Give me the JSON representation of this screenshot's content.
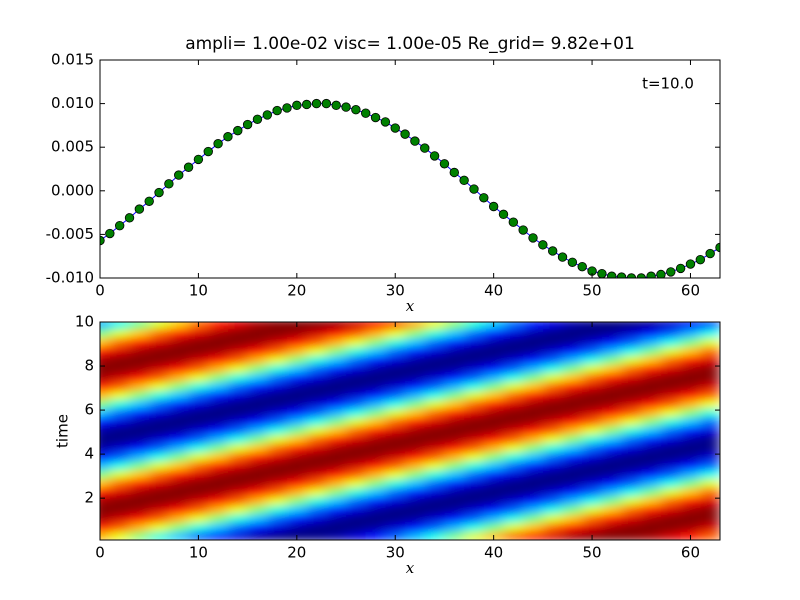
{
  "chart_data": [
    {
      "type": "line",
      "title": "ampli= 1.00e-02  visc= 1.00e-05  Re_grid= 9.82e+01",
      "annotation": "t=10.0",
      "xlabel": "x",
      "x": [
        0,
        1,
        2,
        3,
        4,
        5,
        6,
        7,
        8,
        9,
        10,
        11,
        12,
        13,
        14,
        15,
        16,
        17,
        18,
        19,
        20,
        21,
        22,
        23,
        24,
        25,
        26,
        27,
        28,
        29,
        30,
        31,
        32,
        33,
        34,
        35,
        36,
        37,
        38,
        39,
        40,
        41,
        42,
        43,
        44,
        45,
        46,
        47,
        48,
        49,
        50,
        51,
        52,
        53,
        54,
        55,
        56,
        57,
        58,
        59,
        60,
        61,
        62,
        63
      ],
      "series": [
        {
          "color": "#0000ff",
          "marker_color": "#008000",
          "values": [
            -0.0057,
            -0.0049,
            -0.004,
            -0.0031,
            -0.0021,
            -0.0012,
            -0.0002,
            0.0008,
            0.0018,
            0.0027,
            0.0036,
            0.0045,
            0.0054,
            0.0062,
            0.0069,
            0.0076,
            0.0082,
            0.0087,
            0.0092,
            0.0095,
            0.0098,
            0.0099,
            0.01,
            0.01,
            0.0098,
            0.0096,
            0.0093,
            0.0089,
            0.0084,
            0.0079,
            0.0072,
            0.0065,
            0.0057,
            0.0049,
            0.004,
            0.0031,
            0.0021,
            0.0012,
            0.0002,
            -0.0008,
            -0.0018,
            -0.0027,
            -0.0036,
            -0.0045,
            -0.0054,
            -0.0062,
            -0.0069,
            -0.0076,
            -0.0082,
            -0.0087,
            -0.0092,
            -0.0095,
            -0.0098,
            -0.0099,
            -0.01,
            -0.01,
            -0.0098,
            -0.0096,
            -0.0093,
            -0.0089,
            -0.0084,
            -0.0079,
            -0.0072,
            -0.0065
          ]
        }
      ],
      "xlim": [
        0,
        63
      ],
      "xticks": [
        0,
        10,
        20,
        30,
        40,
        50,
        60
      ],
      "ylim": [
        -0.01,
        0.015
      ],
      "yticks": [
        {
          "value": -0.01,
          "label": "-0.010"
        },
        -0.005,
        {
          "value": 0,
          "label": "0.000"
        },
        0.005,
        {
          "value": 0.01,
          "label": "0.010"
        },
        0.015
      ]
    },
    {
      "type": "heatmap",
      "xlabel": "x",
      "ylabel": "time",
      "colormap": "jet",
      "clim": [
        -0.01,
        0.01
      ],
      "x": [
        0,
        2,
        4,
        6,
        8,
        10,
        12,
        14,
        16,
        18,
        20,
        22,
        24,
        26,
        28,
        30,
        32,
        34,
        36,
        38,
        40,
        42,
        44,
        46,
        48,
        50,
        52,
        54,
        56,
        58,
        60,
        62
      ],
      "y": [
        0.3,
        0.7,
        1.1,
        1.5,
        1.9,
        2.3,
        2.7,
        3.1,
        3.5,
        3.9,
        4.3,
        4.7,
        5.1,
        5.5,
        5.9,
        6.3,
        6.7,
        7.1,
        7.5,
        7.9,
        8.3,
        8.7,
        9.1,
        9.5,
        9.9
      ],
      "z": [
        [
          0.004,
          0.0021,
          0.0002,
          -0.0018,
          -0.0036,
          -0.0054,
          -0.0069,
          -0.0082,
          -0.0092,
          -0.0098,
          -0.01,
          -0.0098,
          -0.0093,
          -0.0084,
          -0.0072,
          -0.0057,
          -0.004,
          -0.0021,
          -0.0002,
          0.0018,
          0.0036,
          0.0054,
          0.0069,
          0.0082,
          0.0092,
          0.0098,
          0.01,
          0.0098,
          0.0093,
          0.0084,
          0.0072,
          0.0057
        ],
        [
          0.0072,
          0.0057,
          0.004,
          0.0021,
          0.0002,
          -0.0018,
          -0.0036,
          -0.0054,
          -0.0069,
          -0.0082,
          -0.0092,
          -0.0098,
          -0.01,
          -0.0098,
          -0.0093,
          -0.0084,
          -0.0072,
          -0.0057,
          -0.004,
          -0.0021,
          -0.0002,
          0.0018,
          0.0036,
          0.0054,
          0.0069,
          0.0082,
          0.0092,
          0.0098,
          0.01,
          0.0098,
          0.0093,
          0.0084
        ],
        [
          0.0093,
          0.0084,
          0.0072,
          0.0057,
          0.004,
          0.0021,
          0.0002,
          -0.0018,
          -0.0036,
          -0.0054,
          -0.0069,
          -0.0082,
          -0.0092,
          -0.0098,
          -0.01,
          -0.0098,
          -0.0093,
          -0.0084,
          -0.0072,
          -0.0057,
          -0.004,
          -0.0021,
          -0.0002,
          0.0018,
          0.0036,
          0.0054,
          0.0069,
          0.0082,
          0.0092,
          0.0098,
          0.01,
          0.0098
        ],
        [
          0.01,
          0.0098,
          0.0093,
          0.0084,
          0.0072,
          0.0057,
          0.004,
          0.0021,
          0.0002,
          -0.0018,
          -0.0036,
          -0.0054,
          -0.0069,
          -0.0082,
          -0.0092,
          -0.0098,
          -0.01,
          -0.0098,
          -0.0093,
          -0.0084,
          -0.0072,
          -0.0057,
          -0.004,
          -0.0021,
          -0.0002,
          0.0018,
          0.0036,
          0.0054,
          0.0069,
          0.0082,
          0.0092,
          0.0098
        ],
        [
          0.0092,
          0.0098,
          0.01,
          0.0098,
          0.0093,
          0.0084,
          0.0072,
          0.0057,
          0.004,
          0.0021,
          0.0002,
          -0.0018,
          -0.0036,
          -0.0054,
          -0.0069,
          -0.0082,
          -0.0092,
          -0.0098,
          -0.01,
          -0.0098,
          -0.0093,
          -0.0084,
          -0.0072,
          -0.0057,
          -0.004,
          -0.0021,
          -0.0002,
          0.0018,
          0.0036,
          0.0054,
          0.0069,
          0.0082
        ],
        [
          0.0069,
          0.0082,
          0.0092,
          0.0098,
          0.01,
          0.0098,
          0.0093,
          0.0084,
          0.0072,
          0.0057,
          0.004,
          0.0021,
          0.0002,
          -0.0018,
          -0.0036,
          -0.0054,
          -0.0069,
          -0.0082,
          -0.0092,
          -0.0098,
          -0.01,
          -0.0098,
          -0.0093,
          -0.0084,
          -0.0072,
          -0.0057,
          -0.004,
          -0.0021,
          -0.0002,
          0.0018,
          0.0036,
          0.0054
        ],
        [
          0.0036,
          0.0054,
          0.0069,
          0.0082,
          0.0092,
          0.0098,
          0.01,
          0.0098,
          0.0093,
          0.0084,
          0.0072,
          0.0057,
          0.004,
          0.0021,
          0.0002,
          -0.0018,
          -0.0036,
          -0.0054,
          -0.0069,
          -0.0082,
          -0.0092,
          -0.0098,
          -0.01,
          -0.0098,
          -0.0093,
          -0.0084,
          -0.0072,
          -0.0057,
          -0.004,
          -0.0021,
          -0.0002,
          0.0018
        ],
        [
          -0.0002,
          0.0018,
          0.0036,
          0.0054,
          0.0069,
          0.0082,
          0.0092,
          0.0098,
          0.01,
          0.0098,
          0.0093,
          0.0084,
          0.0072,
          0.0057,
          0.004,
          0.0021,
          0.0002,
          -0.0018,
          -0.0036,
          -0.0054,
          -0.0069,
          -0.0082,
          -0.0092,
          -0.0098,
          -0.01,
          -0.0098,
          -0.0093,
          -0.0084,
          -0.0072,
          -0.0057,
          -0.004,
          -0.0021
        ],
        [
          -0.004,
          -0.0021,
          -0.0002,
          0.0018,
          0.0036,
          0.0054,
          0.0069,
          0.0082,
          0.0092,
          0.0098,
          0.01,
          0.0098,
          0.0093,
          0.0084,
          0.0072,
          0.0057,
          0.004,
          0.0021,
          0.0002,
          -0.0018,
          -0.0036,
          -0.0054,
          -0.0069,
          -0.0082,
          -0.0092,
          -0.0098,
          -0.01,
          -0.0098,
          -0.0093,
          -0.0084,
          -0.0072,
          -0.0057
        ],
        [
          -0.0072,
          -0.0057,
          -0.004,
          -0.0021,
          -0.0002,
          0.0018,
          0.0036,
          0.0054,
          0.0069,
          0.0082,
          0.0092,
          0.0098,
          0.01,
          0.0098,
          0.0093,
          0.0084,
          0.0072,
          0.0057,
          0.004,
          0.0021,
          0.0002,
          -0.0018,
          -0.0036,
          -0.0054,
          -0.0069,
          -0.0082,
          -0.0092,
          -0.0098,
          -0.01,
          -0.0098,
          -0.0093,
          -0.0084
        ],
        [
          -0.0093,
          -0.0084,
          -0.0072,
          -0.0057,
          -0.004,
          -0.0021,
          -0.0002,
          0.0018,
          0.0036,
          0.0054,
          0.0069,
          0.0082,
          0.0092,
          0.0098,
          0.01,
          0.0098,
          0.0093,
          0.0084,
          0.0072,
          0.0057,
          0.004,
          0.0021,
          0.0002,
          -0.0018,
          -0.0036,
          -0.0054,
          -0.0069,
          -0.0082,
          -0.0092,
          -0.0098,
          -0.01,
          -0.0098
        ],
        [
          -0.01,
          -0.0098,
          -0.0093,
          -0.0084,
          -0.0072,
          -0.0057,
          -0.004,
          -0.0021,
          -0.0002,
          0.0018,
          0.0036,
          0.0054,
          0.0069,
          0.0082,
          0.0092,
          0.0098,
          0.01,
          0.0098,
          0.0093,
          0.0084,
          0.0072,
          0.0057,
          0.004,
          0.0021,
          0.0002,
          -0.0018,
          -0.0036,
          -0.0054,
          -0.0069,
          -0.0082,
          -0.0092,
          -0.0098
        ],
        [
          -0.0092,
          -0.0098,
          -0.01,
          -0.0098,
          -0.0093,
          -0.0084,
          -0.0072,
          -0.0057,
          -0.004,
          -0.0021,
          -0.0002,
          0.0018,
          0.0036,
          0.0054,
          0.0069,
          0.0082,
          0.0092,
          0.0098,
          0.01,
          0.0098,
          0.0093,
          0.0084,
          0.0072,
          0.0057,
          0.004,
          0.0021,
          0.0002,
          -0.0018,
          -0.0036,
          -0.0054,
          -0.0069,
          -0.0082
        ],
        [
          -0.0069,
          -0.0082,
          -0.0092,
          -0.0098,
          -0.01,
          -0.0098,
          -0.0093,
          -0.0084,
          -0.0072,
          -0.0057,
          -0.004,
          -0.0021,
          -0.0002,
          0.0018,
          0.0036,
          0.0054,
          0.0069,
          0.0082,
          0.0092,
          0.0098,
          0.01,
          0.0098,
          0.0093,
          0.0084,
          0.0072,
          0.0057,
          0.004,
          0.0021,
          0.0002,
          -0.0018,
          -0.0036,
          -0.0054
        ],
        [
          -0.0036,
          -0.0054,
          -0.0069,
          -0.0082,
          -0.0092,
          -0.0098,
          -0.01,
          -0.0098,
          -0.0093,
          -0.0084,
          -0.0072,
          -0.0057,
          -0.004,
          -0.0021,
          -0.0002,
          0.0018,
          0.0036,
          0.0054,
          0.0069,
          0.0082,
          0.0092,
          0.0098,
          0.01,
          0.0098,
          0.0093,
          0.0084,
          0.0072,
          0.0057,
          0.004,
          0.0021,
          0.0002,
          -0.0018
        ],
        [
          0.0002,
          -0.0018,
          -0.0036,
          -0.0054,
          -0.0069,
          -0.0082,
          -0.0092,
          -0.0098,
          -0.01,
          -0.0098,
          -0.0093,
          -0.0084,
          -0.0072,
          -0.0057,
          -0.004,
          -0.0021,
          -0.0002,
          0.0018,
          0.0036,
          0.0054,
          0.0069,
          0.0082,
          0.0092,
          0.0098,
          0.01,
          0.0098,
          0.0093,
          0.0084,
          0.0072,
          0.0057,
          0.004,
          0.0021
        ],
        [
          0.004,
          0.0021,
          0.0002,
          -0.0018,
          -0.0036,
          -0.0054,
          -0.0069,
          -0.0082,
          -0.0092,
          -0.0098,
          -0.01,
          -0.0098,
          -0.0093,
          -0.0084,
          -0.0072,
          -0.0057,
          -0.004,
          -0.0021,
          -0.0002,
          0.0018,
          0.0036,
          0.0054,
          0.0069,
          0.0082,
          0.0092,
          0.0098,
          0.01,
          0.0098,
          0.0093,
          0.0084,
          0.0072,
          0.0057
        ],
        [
          0.0072,
          0.0057,
          0.004,
          0.0021,
          0.0002,
          -0.0018,
          -0.0036,
          -0.0054,
          -0.0069,
          -0.0082,
          -0.0092,
          -0.0098,
          -0.01,
          -0.0098,
          -0.0093,
          -0.0084,
          -0.0072,
          -0.0057,
          -0.004,
          -0.0021,
          -0.0002,
          0.0018,
          0.0036,
          0.0054,
          0.0069,
          0.0082,
          0.0092,
          0.0098,
          0.01,
          0.0098,
          0.0093,
          0.0084
        ],
        [
          0.0093,
          0.0084,
          0.0072,
          0.0057,
          0.004,
          0.0021,
          0.0002,
          -0.0018,
          -0.0036,
          -0.0054,
          -0.0069,
          -0.0082,
          -0.0092,
          -0.0098,
          -0.01,
          -0.0098,
          -0.0093,
          -0.0084,
          -0.0072,
          -0.0057,
          -0.004,
          -0.0021,
          -0.0002,
          0.0018,
          0.0036,
          0.0054,
          0.0069,
          0.0082,
          0.0092,
          0.0098,
          0.01,
          0.0098
        ],
        [
          0.01,
          0.0098,
          0.0093,
          0.0084,
          0.0072,
          0.0057,
          0.004,
          0.0021,
          0.0002,
          -0.0018,
          -0.0036,
          -0.0054,
          -0.0069,
          -0.0082,
          -0.0092,
          -0.0098,
          -0.01,
          -0.0098,
          -0.0093,
          -0.0084,
          -0.0072,
          -0.0057,
          -0.004,
          -0.0021,
          -0.0002,
          0.0018,
          0.0036,
          0.0054,
          0.0069,
          0.0082,
          0.0092,
          0.0098
        ],
        [
          0.0092,
          0.0098,
          0.01,
          0.0098,
          0.0093,
          0.0084,
          0.0072,
          0.0057,
          0.004,
          0.0021,
          0.0002,
          -0.0018,
          -0.0036,
          -0.0054,
          -0.0069,
          -0.0082,
          -0.0092,
          -0.0098,
          -0.01,
          -0.0098,
          -0.0093,
          -0.0084,
          -0.0072,
          -0.0057,
          -0.004,
          -0.0021,
          -0.0002,
          0.0018,
          0.0036,
          0.0054,
          0.0069,
          0.0082
        ],
        [
          0.0069,
          0.0082,
          0.0092,
          0.0098,
          0.01,
          0.0098,
          0.0093,
          0.0084,
          0.0072,
          0.0057,
          0.004,
          0.0021,
          0.0002,
          -0.0018,
          -0.0036,
          -0.0054,
          -0.0069,
          -0.0082,
          -0.0092,
          -0.0098,
          -0.01,
          -0.0098,
          -0.0093,
          -0.0084,
          -0.0072,
          -0.0057,
          -0.004,
          -0.0021,
          -0.0002,
          0.0018,
          0.0036,
          0.0054
        ],
        [
          0.0036,
          0.0054,
          0.0069,
          0.0082,
          0.0092,
          0.0098,
          0.01,
          0.0098,
          0.0093,
          0.0084,
          0.0072,
          0.0057,
          0.004,
          0.0021,
          0.0002,
          -0.0018,
          -0.0036,
          -0.0054,
          -0.0069,
          -0.0082,
          -0.0092,
          -0.0098,
          -0.01,
          -0.0098,
          -0.0093,
          -0.0084,
          -0.0072,
          -0.0057,
          -0.004,
          -0.0021,
          -0.0002,
          0.0018
        ],
        [
          -0.0002,
          0.0018,
          0.0036,
          0.0054,
          0.0069,
          0.0082,
          0.0092,
          0.0098,
          0.01,
          0.0098,
          0.0093,
          0.0084,
          0.0072,
          0.0057,
          0.004,
          0.0021,
          0.0002,
          -0.0018,
          -0.0036,
          -0.0054,
          -0.0069,
          -0.0082,
          -0.0092,
          -0.0098,
          -0.01,
          -0.0098,
          -0.0093,
          -0.0084,
          -0.0072,
          -0.0057,
          -0.004,
          -0.0021
        ],
        [
          -0.004,
          -0.0021,
          -0.0002,
          0.0018,
          0.0036,
          0.0054,
          0.0069,
          0.0082,
          0.0092,
          0.0098,
          0.01,
          0.0098,
          0.0093,
          0.0084,
          0.0072,
          0.0057,
          0.004,
          0.0021,
          0.0002,
          -0.0018,
          -0.0036,
          -0.0054,
          -0.0069,
          -0.0082,
          -0.0092,
          -0.0098,
          -0.01,
          -0.0098,
          -0.0093,
          -0.0084,
          -0.0072,
          -0.0057
        ]
      ],
      "xlim": [
        0,
        63
      ],
      "xticks": [
        0,
        10,
        20,
        30,
        40,
        50,
        60
      ],
      "ylim": [
        0.1,
        10
      ],
      "yticks": [
        2,
        4,
        6,
        8,
        10
      ]
    }
  ]
}
